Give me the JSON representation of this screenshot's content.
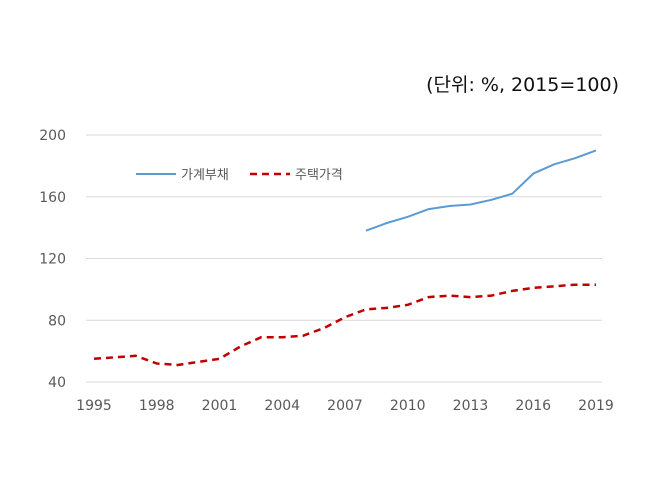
{
  "unit_note": "(단위: %, 2015=100)",
  "chart_data": {
    "type": "line",
    "title": "",
    "xlabel": "",
    "ylabel": "",
    "x": [
      1995,
      1996,
      1997,
      1998,
      1999,
      2000,
      2001,
      2002,
      2003,
      2004,
      2005,
      2006,
      2007,
      2008,
      2009,
      2010,
      2011,
      2012,
      2013,
      2014,
      2015,
      2016,
      2017,
      2018,
      2019
    ],
    "xticks": [
      "1995",
      "1998",
      "2001",
      "2004",
      "2007",
      "2010",
      "2013",
      "2016",
      "2019"
    ],
    "yticks": [
      "40",
      "80",
      "120",
      "160",
      "200"
    ],
    "ylim": [
      40,
      200
    ],
    "xlim": [
      1995,
      2019
    ],
    "grid": "horizontal",
    "legend_position": "top-left",
    "series": [
      {
        "name": "가계부채",
        "color": "#5B9BD5",
        "style": "solid",
        "values": [
          null,
          null,
          null,
          null,
          null,
          null,
          null,
          null,
          null,
          null,
          null,
          null,
          null,
          138,
          143,
          147,
          152,
          154,
          155,
          158,
          162,
          175,
          181,
          185,
          190
        ]
      },
      {
        "name": "주택가격",
        "color": "#C00000",
        "style": "dashed",
        "values": [
          55,
          56,
          57,
          52,
          51,
          53,
          55,
          63,
          69,
          69,
          70,
          75,
          82,
          87,
          88,
          90,
          95,
          96,
          95,
          96,
          99,
          101,
          102,
          103,
          103
        ]
      }
    ]
  }
}
